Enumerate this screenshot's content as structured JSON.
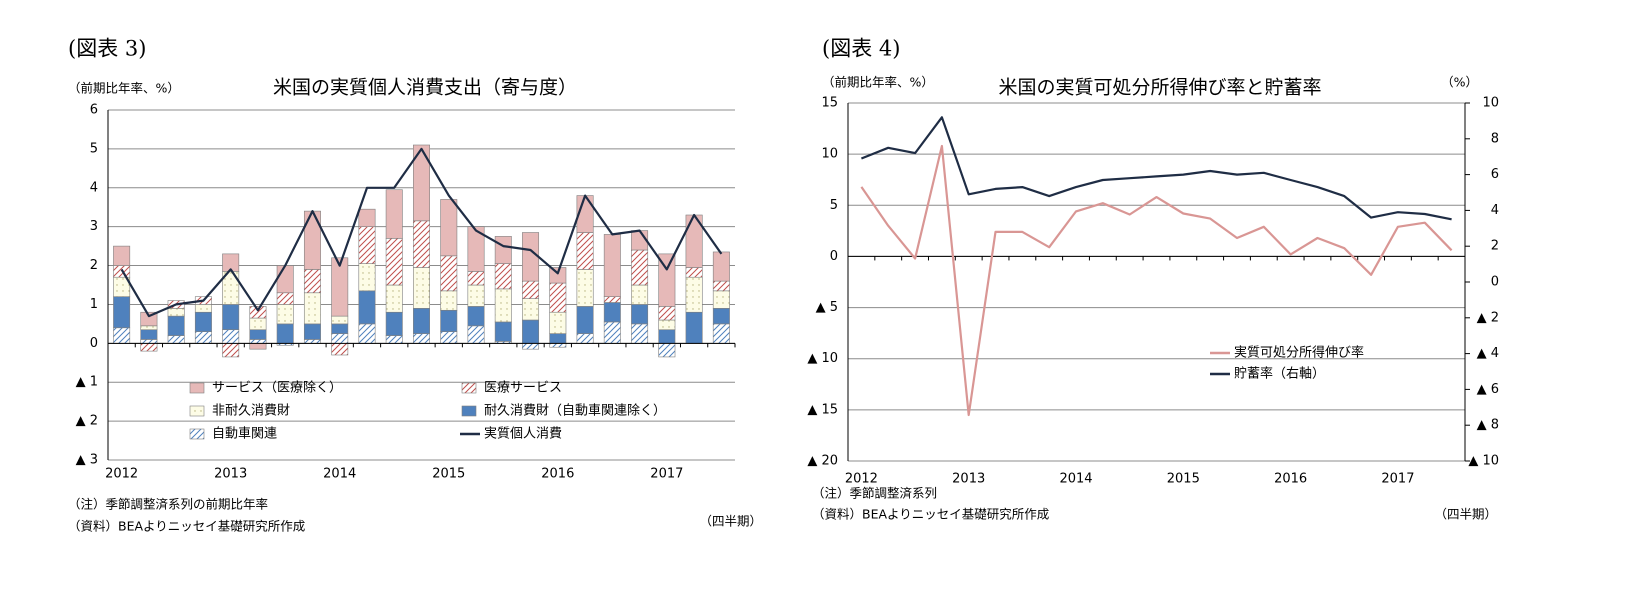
{
  "chart_data": [
    {
      "type": "bar",
      "stacked": true,
      "figure_label": "(図表 3)",
      "title": "米国の実質個人消費支出（寄与度）",
      "y_label": "（前期比年率、%）",
      "x_unit": "（四半期）",
      "notes": [
        "（注）季節調整済系列の前期比年率",
        "（資料）BEAよりニッセイ基礎研究所作成"
      ],
      "categories": [
        "2012",
        null,
        null,
        null,
        "2013",
        null,
        null,
        null,
        "2014",
        null,
        null,
        null,
        "2015",
        null,
        null,
        null,
        "2016",
        null,
        null,
        null,
        "2017",
        null,
        null
      ],
      "ylim": [
        -3,
        6
      ],
      "yticks": [
        6,
        5,
        4,
        3,
        2,
        1,
        0,
        {
          "value": -1,
          "label": "▲ 1"
        },
        {
          "value": -2,
          "label": "▲ 2"
        },
        {
          "value": -3,
          "label": "▲ 3"
        }
      ],
      "grid": true,
      "series": [
        {
          "name": "サービス（医療除く）",
          "color": "#e6b9b8",
          "values": [
            0.5,
            0.35,
            0.0,
            0.0,
            0.45,
            -0.15,
            0.7,
            1.5,
            1.5,
            0.45,
            1.25,
            1.95,
            1.45,
            1.15,
            0.7,
            1.25,
            0.4,
            0.95,
            1.6,
            0.5,
            1.35,
            1.35,
            0.75
          ]
        },
        {
          "name": "医療サービス",
          "color": "#c0504d",
          "pattern": "hatch",
          "values": [
            0.3,
            -0.2,
            0.2,
            0.2,
            -0.35,
            0.3,
            0.3,
            0.6,
            -0.3,
            0.95,
            1.2,
            1.2,
            0.9,
            0.35,
            0.65,
            0.45,
            0.75,
            0.95,
            0.15,
            0.9,
            0.35,
            0.25,
            0.25
          ]
        },
        {
          "name": "非耐久消費財",
          "color": "#b5b07a",
          "pattern": "dots",
          "values": [
            0.5,
            0.1,
            0.2,
            0.2,
            0.85,
            0.3,
            0.5,
            0.8,
            0.2,
            0.7,
            0.7,
            1.05,
            0.5,
            0.55,
            0.85,
            0.55,
            0.55,
            0.95,
            0.0,
            0.5,
            0.25,
            0.9,
            0.45
          ]
        },
        {
          "name": "耐久消費財（自動車関連除く）",
          "color": "#4f81bd",
          "values": [
            0.8,
            0.25,
            0.5,
            0.5,
            0.65,
            0.25,
            0.5,
            0.4,
            0.25,
            0.85,
            0.6,
            0.65,
            0.55,
            0.5,
            0.5,
            0.6,
            0.25,
            0.7,
            0.5,
            0.5,
            0.35,
            0.8,
            0.4
          ]
        },
        {
          "name": "自動車関連",
          "color": "#4f81bd",
          "pattern": "hatch",
          "values": [
            0.4,
            0.1,
            0.2,
            0.3,
            0.35,
            0.1,
            -0.05,
            0.1,
            0.25,
            0.5,
            0.2,
            0.25,
            0.3,
            0.45,
            0.05,
            -0.15,
            -0.1,
            0.25,
            0.55,
            0.5,
            -0.35,
            0.0,
            0.5
          ]
        },
        {
          "name": "実質個人消費",
          "type": "line",
          "color": "#1f2d45",
          "values": [
            1.9,
            0.7,
            1.0,
            1.1,
            1.9,
            0.85,
            2.0,
            3.4,
            2.0,
            4.0,
            4.0,
            5.0,
            3.8,
            2.9,
            2.5,
            2.4,
            1.8,
            3.8,
            2.8,
            2.9,
            1.9,
            3.3,
            2.3
          ]
        }
      ]
    },
    {
      "type": "line",
      "figure_label": "(図表 4)",
      "title": "米国の実質可処分所得伸び率と貯蓄率",
      "y_label": "（前期比年率、%）",
      "y2_label": "（%）",
      "x_unit": "（四半期）",
      "notes": [
        "（注）季節調整済系列",
        "（資料）BEAよりニッセイ基礎研究所作成"
      ],
      "categories": [
        "2012",
        null,
        null,
        null,
        "2013",
        null,
        null,
        null,
        "2014",
        null,
        null,
        null,
        "2015",
        null,
        null,
        null,
        "2016",
        null,
        null,
        null,
        "2017",
        null,
        null
      ],
      "ylim": [
        -20,
        15
      ],
      "yticks": [
        15,
        10,
        5,
        0,
        {
          "value": -5,
          "label": "▲ 5"
        },
        {
          "value": -10,
          "label": "▲ 10"
        },
        {
          "value": -15,
          "label": "▲ 15"
        },
        {
          "value": -20,
          "label": "▲ 20"
        }
      ],
      "y2lim": [
        -10,
        10
      ],
      "y2ticks": [
        10,
        8,
        6,
        4,
        2,
        0,
        {
          "value": -2,
          "label": "▲ 2"
        },
        {
          "value": -4,
          "label": "▲ 4"
        },
        {
          "value": -6,
          "label": "▲ 6"
        },
        {
          "value": -8,
          "label": "▲ 8"
        },
        {
          "value": -10,
          "label": "▲ 10"
        }
      ],
      "grid": true,
      "series": [
        {
          "name": "実質可処分所得伸び率",
          "color": "#d99694",
          "values": [
            6.8,
            3.0,
            -0.2,
            10.8,
            -15.5,
            2.4,
            2.4,
            0.9,
            4.4,
            5.2,
            4.1,
            5.8,
            4.2,
            3.7,
            1.8,
            2.9,
            0.2,
            1.8,
            0.8,
            -1.8,
            2.9,
            3.3,
            0.6
          ]
        },
        {
          "name": "貯蓄率（右軸）",
          "color": "#1f2d45",
          "axis": "y2",
          "values": [
            6.9,
            7.5,
            7.2,
            9.2,
            4.9,
            5.2,
            5.3,
            4.8,
            5.3,
            5.7,
            5.8,
            5.9,
            6.0,
            6.2,
            6.0,
            6.1,
            5.7,
            5.3,
            4.8,
            3.6,
            3.9,
            3.8,
            3.5
          ]
        }
      ]
    }
  ]
}
